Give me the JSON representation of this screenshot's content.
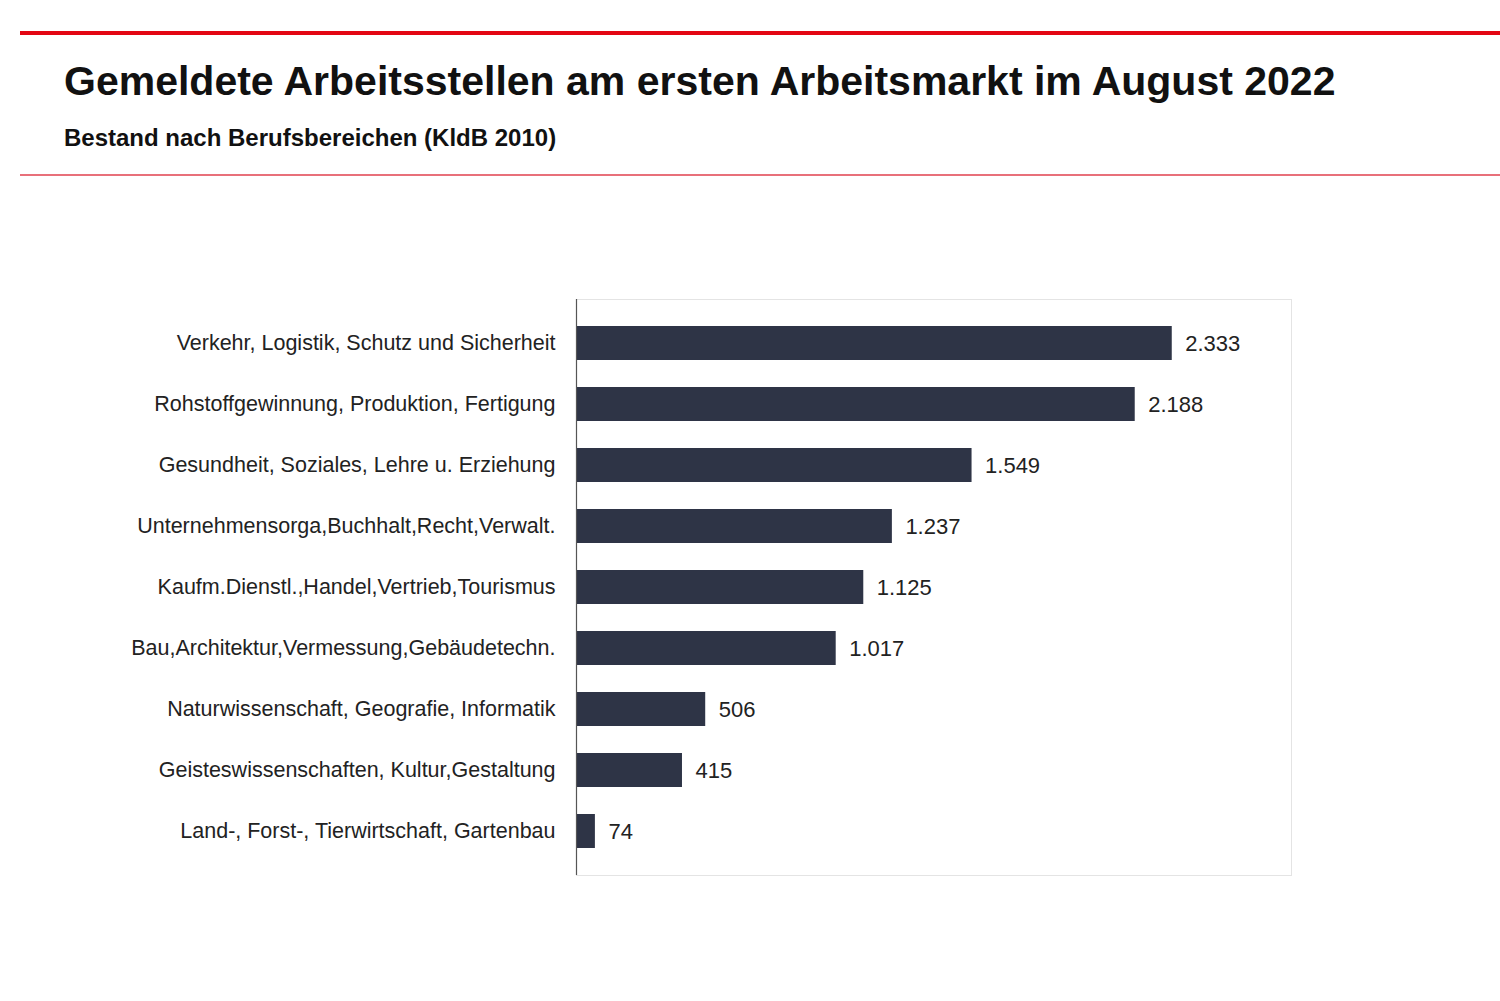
{
  "chart_data": {
    "type": "bar",
    "title": "Gemeldete Arbeitsstellen am ersten Arbeitsmarkt im August 2022",
    "subtitle": "Bestand nach Berufsbereichen (KldB 2010)",
    "orientation": "horizontal",
    "categories": [
      "Verkehr, Logistik, Schutz und Sicherheit",
      "Rohstoffgewinnung, Produktion, Fertigung",
      "Gesundheit, Soziales, Lehre u. Erziehung",
      "Unternehmensorga,Buchhalt,Recht,Verwalt.",
      "Kaufm.Dienstl.,Handel,Vertrieb,Tourismus",
      "Bau,Architektur,Vermessung,Gebäudetechn.",
      "Naturwissenschaft, Geografie, Informatik",
      "Geisteswissenschaften, Kultur,Gestaltung",
      "Land-, Forst-, Tierwirtschaft, Gartenbau"
    ],
    "values": [
      2333,
      2188,
      1549,
      1237,
      1125,
      1017,
      506,
      415,
      74
    ],
    "value_labels": [
      "2.333",
      "2.188",
      "1.549",
      "1.237",
      "1.125",
      "1.017",
      "506",
      "415",
      "74"
    ],
    "color": "#2e3446",
    "xlim": [
      0,
      2800
    ],
    "data_labels": true,
    "tick_labels": "y",
    "grid": false
  }
}
